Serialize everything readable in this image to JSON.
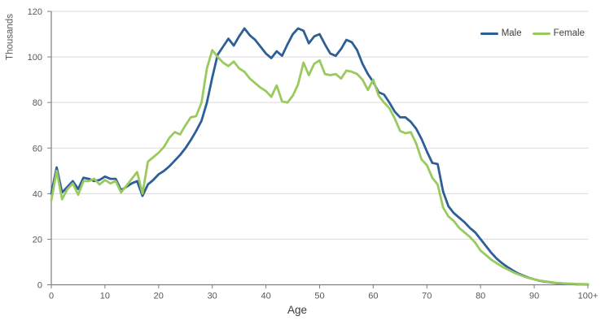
{
  "chart": {
    "y_axis_title": "Thousands",
    "x_axis_title": "Age"
  },
  "chart_data": {
    "type": "line",
    "title": "",
    "xlabel": "Age",
    "ylabel": "Thousands",
    "xlim": [
      0,
      100
    ],
    "ylim": [
      0,
      120
    ],
    "grid": "horizontal",
    "legend_position": "top-right",
    "y_ticks": [
      0,
      20,
      40,
      60,
      80,
      100,
      120
    ],
    "x_ticks": [
      0,
      10,
      20,
      30,
      40,
      50,
      60,
      70,
      80,
      90,
      100
    ],
    "x_tick_labels": [
      "0",
      "10",
      "20",
      "30",
      "40",
      "50",
      "60",
      "70",
      "80",
      "90",
      "100+"
    ],
    "ages": [
      0,
      1,
      2,
      3,
      4,
      5,
      6,
      7,
      8,
      9,
      10,
      11,
      12,
      13,
      14,
      15,
      16,
      17,
      18,
      19,
      20,
      21,
      22,
      23,
      24,
      25,
      26,
      27,
      28,
      29,
      30,
      31,
      32,
      33,
      34,
      35,
      36,
      37,
      38,
      39,
      40,
      41,
      42,
      43,
      44,
      45,
      46,
      47,
      48,
      49,
      50,
      51,
      52,
      53,
      54,
      55,
      56,
      57,
      58,
      59,
      60,
      61,
      62,
      63,
      64,
      65,
      66,
      67,
      68,
      69,
      70,
      71,
      72,
      73,
      74,
      75,
      76,
      77,
      78,
      79,
      80,
      81,
      82,
      83,
      84,
      85,
      86,
      87,
      88,
      89,
      90,
      91,
      92,
      93,
      94,
      95,
      96,
      97,
      98,
      99,
      100
    ],
    "series": [
      {
        "name": "Male",
        "color": "#2d5f96",
        "values": [
          40,
          51.5,
          40.5,
          43,
          45.5,
          42,
          47,
          46.5,
          45.5,
          46,
          47.5,
          46.5,
          46.5,
          41.5,
          43,
          44.5,
          45.5,
          39,
          44,
          46,
          48.5,
          50,
          52,
          54.5,
          57,
          60,
          63.5,
          67.5,
          72,
          80,
          91,
          101,
          104.5,
          108,
          105,
          109,
          112.5,
          109.5,
          107.5,
          104.5,
          101.5,
          99.5,
          102.5,
          100.5,
          105.5,
          110,
          112.5,
          111.5,
          106,
          109,
          110,
          105.5,
          101.5,
          100.5,
          103.5,
          107.5,
          106.5,
          103,
          97,
          92.5,
          89,
          84.5,
          83.5,
          80,
          76,
          73.5,
          73.5,
          71.5,
          68.5,
          64,
          58.5,
          53.5,
          53,
          41,
          34.5,
          31.5,
          29.5,
          27.5,
          25,
          23,
          20,
          17,
          14,
          11.5,
          9.5,
          7.8,
          6.3,
          5,
          4,
          3.1,
          2.4,
          1.8,
          1.4,
          1.1,
          0.8,
          0.6,
          0.5,
          0.35,
          0.25,
          0.2,
          0.15
        ]
      },
      {
        "name": "Female",
        "color": "#9aca5f",
        "values": [
          37,
          50,
          37.5,
          42,
          44.5,
          39.5,
          45.5,
          45.5,
          46.5,
          44,
          46,
          44.5,
          45.5,
          40.5,
          43.5,
          46.5,
          49.5,
          40,
          54,
          56,
          58,
          60.5,
          64.5,
          67,
          66,
          70,
          73.5,
          74,
          80,
          95,
          103,
          100,
          97.5,
          96,
          98,
          95,
          93.5,
          90.5,
          88.5,
          86.5,
          85,
          82.5,
          87.5,
          80.5,
          80,
          83,
          88,
          97.5,
          92,
          97,
          98.5,
          92.5,
          92,
          92.5,
          90.5,
          94,
          93.5,
          92.5,
          90,
          85.5,
          90,
          83,
          80,
          77.5,
          73,
          67.5,
          66.5,
          67,
          62,
          55,
          52.5,
          47,
          44,
          34,
          30,
          28,
          25,
          23,
          21,
          18.5,
          15,
          13,
          11,
          9.5,
          8,
          6.8,
          5.6,
          4.6,
          3.7,
          3,
          2.4,
          1.9,
          1.5,
          1.2,
          0.9,
          0.7,
          0.55,
          0.45,
          0.35,
          0.3,
          0.25
        ]
      }
    ],
    "colors": {
      "grid": "#d9d9d9",
      "axis": "#7f7f7f",
      "tick_label": "#595959",
      "axis_title": "#3b3b3b"
    }
  }
}
